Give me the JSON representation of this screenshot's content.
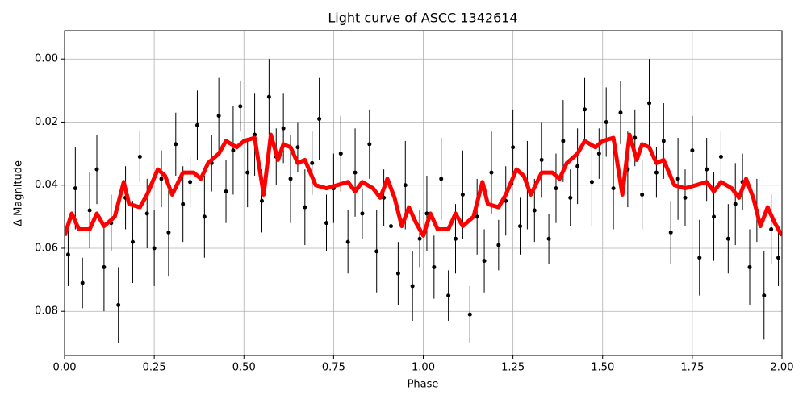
{
  "chart_data": {
    "type": "errorbar",
    "title": "Light curve of ASCC 1342614",
    "x_label": "Phase",
    "y_label": "Δ Magnitude",
    "xlim": [
      0,
      2
    ],
    "ylim": [
      0.094,
      -0.009
    ],
    "xticks": [
      {
        "value": 0,
        "label": "0.00"
      },
      {
        "value": 0.25,
        "label": "0.25"
      },
      {
        "value": 0.5,
        "label": "0.50"
      },
      {
        "value": 0.75,
        "label": "0.75"
      },
      {
        "value": 1,
        "label": "1.00"
      },
      {
        "value": 1.25,
        "label": "1.25"
      },
      {
        "value": 1.5,
        "label": "1.50"
      },
      {
        "value": 1.75,
        "label": "1.75"
      },
      {
        "value": 2,
        "label": "2.00"
      }
    ],
    "yticks": [
      {
        "value": 0,
        "label": "0.00"
      },
      {
        "value": 0.02,
        "label": "0.02"
      },
      {
        "value": 0.04,
        "label": "0.04"
      },
      {
        "value": 0.06,
        "label": "0.06"
      },
      {
        "value": 0.08,
        "label": "0.08"
      }
    ],
    "grid": true,
    "points": {
      "color": "#000000",
      "x": [
        0.01,
        0.03,
        0.05,
        0.07,
        0.09,
        0.11,
        0.13,
        0.15,
        0.17,
        0.19,
        0.21,
        0.23,
        0.25,
        0.27,
        0.29,
        0.31,
        0.33,
        0.35,
        0.37,
        0.39,
        0.41,
        0.43,
        0.45,
        0.47,
        0.49,
        0.51,
        0.53,
        0.55,
        0.57,
        0.59,
        0.61,
        0.63,
        0.65,
        0.67,
        0.69,
        0.71,
        0.73,
        0.75,
        0.77,
        0.79,
        0.81,
        0.83,
        0.85,
        0.87,
        0.89,
        0.91,
        0.93,
        0.95,
        0.97,
        0.99,
        1.01,
        1.03,
        1.05,
        1.07,
        1.09,
        1.11,
        1.13,
        1.15,
        1.17,
        1.19,
        1.21,
        1.23,
        1.25,
        1.27,
        1.29,
        1.31,
        1.33,
        1.35,
        1.37,
        1.39,
        1.41,
        1.43,
        1.45,
        1.47,
        1.49,
        1.51,
        1.53,
        1.55,
        1.57,
        1.59,
        1.61,
        1.63,
        1.65,
        1.67,
        1.69,
        1.71,
        1.73,
        1.75,
        1.77,
        1.79,
        1.81,
        1.83,
        1.85,
        1.87,
        1.89,
        1.91,
        1.93,
        1.95,
        1.97,
        1.99
      ],
      "values": [
        0.062,
        0.041,
        0.071,
        0.048,
        0.035,
        0.066,
        0.052,
        0.078,
        0.044,
        0.058,
        0.031,
        0.049,
        0.06,
        0.038,
        0.055,
        0.027,
        0.046,
        0.039,
        0.021,
        0.05,
        0.033,
        0.018,
        0.042,
        0.029,
        0.015,
        0.036,
        0.024,
        0.045,
        0.012,
        0.031,
        0.022,
        0.038,
        0.028,
        0.047,
        0.033,
        0.019,
        0.052,
        0.041,
        0.03,
        0.058,
        0.036,
        0.049,
        0.027,
        0.061,
        0.044,
        0.053,
        0.068,
        0.04,
        0.072,
        0.057,
        0.049,
        0.066,
        0.038,
        0.075,
        0.057,
        0.043,
        0.081,
        0.05,
        0.064,
        0.036,
        0.059,
        0.045,
        0.028,
        0.053,
        0.04,
        0.048,
        0.032,
        0.057,
        0.041,
        0.026,
        0.044,
        0.034,
        0.016,
        0.039,
        0.03,
        0.02,
        0.041,
        0.017,
        0.035,
        0.025,
        0.043,
        0.014,
        0.036,
        0.026,
        0.055,
        0.038,
        0.044,
        0.029,
        0.063,
        0.035,
        0.05,
        0.031,
        0.057,
        0.046,
        0.039,
        0.066,
        0.048,
        0.075,
        0.054,
        0.063
      ],
      "errors": [
        0.01,
        0.013,
        0.008,
        0.012,
        0.011,
        0.014,
        0.009,
        0.012,
        0.01,
        0.013,
        0.008,
        0.011,
        0.012,
        0.009,
        0.014,
        0.01,
        0.012,
        0.008,
        0.011,
        0.013,
        0.009,
        0.012,
        0.01,
        0.014,
        0.008,
        0.011,
        0.013,
        0.01,
        0.012,
        0.009,
        0.011,
        0.014,
        0.008,
        0.012,
        0.01,
        0.013,
        0.009,
        0.011,
        0.012,
        0.01,
        0.014,
        0.008,
        0.011,
        0.013,
        0.009,
        0.012,
        0.01,
        0.014,
        0.011,
        0.009,
        0.012,
        0.01,
        0.013,
        0.008,
        0.011,
        0.014,
        0.009,
        0.012,
        0.01,
        0.013,
        0.008,
        0.011,
        0.012,
        0.009,
        0.014,
        0.01,
        0.012,
        0.008,
        0.011,
        0.013,
        0.009,
        0.012,
        0.01,
        0.014,
        0.008,
        0.011,
        0.013,
        0.01,
        0.012,
        0.009,
        0.011,
        0.014,
        0.008,
        0.012,
        0.01,
        0.013,
        0.009,
        0.011,
        0.012,
        0.01,
        0.014,
        0.008,
        0.011,
        0.013,
        0.009,
        0.012,
        0.01,
        0.014,
        0.011,
        0.009
      ]
    },
    "curve": {
      "color": "#ff0000",
      "x": [
        0,
        0.02,
        0.04,
        0.07,
        0.09,
        0.11,
        0.14,
        0.165,
        0.18,
        0.21,
        0.23,
        0.26,
        0.28,
        0.3,
        0.33,
        0.36,
        0.38,
        0.4,
        0.43,
        0.45,
        0.48,
        0.5,
        0.53,
        0.555,
        0.575,
        0.595,
        0.61,
        0.63,
        0.65,
        0.67,
        0.7,
        0.73,
        0.76,
        0.79,
        0.81,
        0.83,
        0.86,
        0.88,
        0.9,
        0.92,
        0.94,
        0.96,
        0.98,
        1.0,
        1.02,
        1.04,
        1.07,
        1.09,
        1.11,
        1.14,
        1.165,
        1.18,
        1.21,
        1.23,
        1.26,
        1.28,
        1.3,
        1.33,
        1.36,
        1.38,
        1.4,
        1.43,
        1.45,
        1.48,
        1.5,
        1.53,
        1.555,
        1.575,
        1.595,
        1.61,
        1.63,
        1.65,
        1.67,
        1.7,
        1.73,
        1.76,
        1.79,
        1.81,
        1.83,
        1.86,
        1.88,
        1.9,
        1.92,
        1.94,
        1.96,
        1.98,
        2.0
      ],
      "values": [
        0.056,
        0.049,
        0.054,
        0.054,
        0.049,
        0.053,
        0.05,
        0.039,
        0.046,
        0.047,
        0.043,
        0.035,
        0.037,
        0.043,
        0.036,
        0.036,
        0.038,
        0.033,
        0.03,
        0.026,
        0.028,
        0.026,
        0.025,
        0.043,
        0.024,
        0.032,
        0.027,
        0.028,
        0.033,
        0.032,
        0.04,
        0.041,
        0.04,
        0.039,
        0.042,
        0.039,
        0.041,
        0.044,
        0.038,
        0.044,
        0.053,
        0.047,
        0.052,
        0.056,
        0.049,
        0.054,
        0.054,
        0.049,
        0.053,
        0.05,
        0.039,
        0.046,
        0.047,
        0.043,
        0.035,
        0.037,
        0.043,
        0.036,
        0.036,
        0.038,
        0.033,
        0.03,
        0.026,
        0.028,
        0.026,
        0.025,
        0.043,
        0.024,
        0.032,
        0.027,
        0.028,
        0.033,
        0.032,
        0.04,
        0.041,
        0.04,
        0.039,
        0.042,
        0.039,
        0.041,
        0.044,
        0.038,
        0.044,
        0.053,
        0.047,
        0.052,
        0.056
      ]
    }
  }
}
